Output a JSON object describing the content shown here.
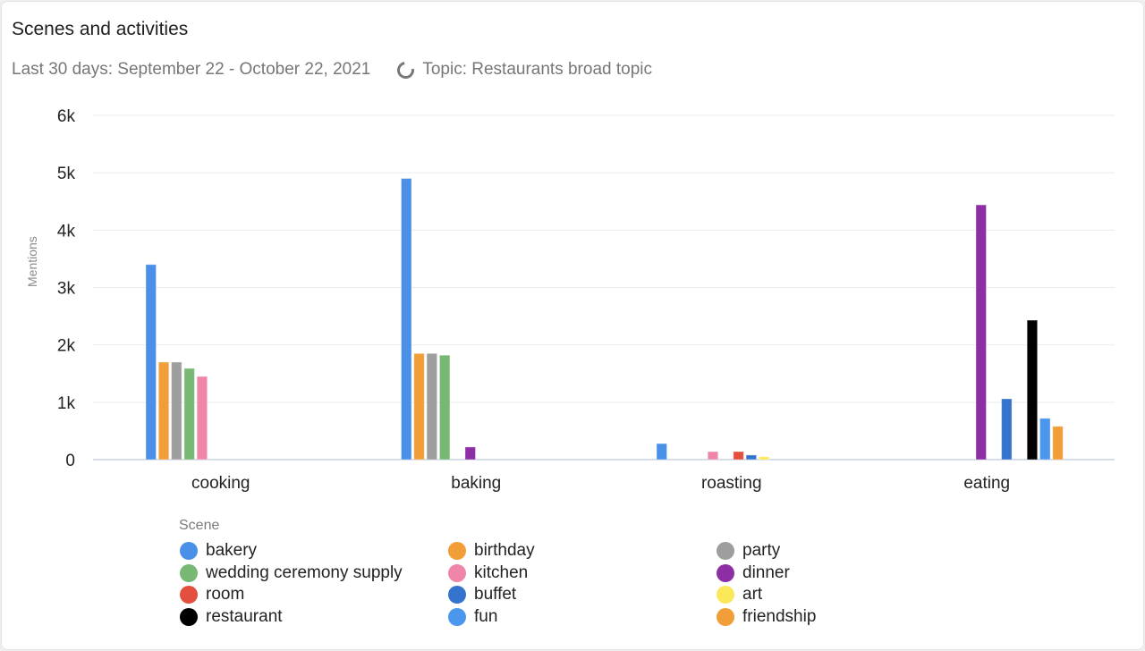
{
  "header": {
    "title": "Scenes and activities",
    "date_range": "Last 30 days: September 22 - October 22, 2021",
    "topic_icon": "loading-circle-icon",
    "topic": "Topic: Restaurants broad topic"
  },
  "legend": {
    "title": "Scene",
    "items": [
      {
        "label": "bakery",
        "color": "#4a90e8"
      },
      {
        "label": "birthday",
        "color": "#f19d38"
      },
      {
        "label": "party",
        "color": "#9e9e9e"
      },
      {
        "label": "wedding ceremony supply",
        "color": "#77b874"
      },
      {
        "label": "kitchen",
        "color": "#ef86aa"
      },
      {
        "label": "dinner",
        "color": "#8e2ea5"
      },
      {
        "label": "room",
        "color": "#e24f3e"
      },
      {
        "label": "buffet",
        "color": "#3574cc"
      },
      {
        "label": "art",
        "color": "#fbe85a"
      },
      {
        "label": "restaurant",
        "color": "#000000"
      },
      {
        "label": "fun",
        "color": "#4b97ee"
      },
      {
        "label": "friendship",
        "color": "#f19d38"
      }
    ]
  },
  "chart_data": {
    "type": "bar",
    "title": "Scenes and activities",
    "subtitle": "Last 30 days: September 22 - October 22, 2021",
    "xlabel": "",
    "ylabel": "Mentions",
    "ylim": [
      0,
      6000
    ],
    "yticks": [
      "0",
      "1k",
      "2k",
      "3k",
      "4k",
      "5k",
      "6k"
    ],
    "grid": true,
    "legend_position": "bottom",
    "legend_title": "Scene",
    "categories": [
      "cooking",
      "baking",
      "roasting",
      "eating"
    ],
    "series": [
      {
        "name": "bakery",
        "values": [
          3400,
          4900,
          280,
          0
        ]
      },
      {
        "name": "birthday",
        "values": [
          1700,
          1850,
          0,
          0
        ]
      },
      {
        "name": "party",
        "values": [
          1700,
          1850,
          0,
          0
        ]
      },
      {
        "name": "wedding ceremony supply",
        "values": [
          1590,
          1820,
          0,
          0
        ]
      },
      {
        "name": "kitchen",
        "values": [
          1450,
          0,
          140,
          0
        ]
      },
      {
        "name": "dinner",
        "values": [
          0,
          220,
          0,
          4440
        ]
      },
      {
        "name": "room",
        "values": [
          0,
          0,
          140,
          0
        ]
      },
      {
        "name": "buffet",
        "values": [
          0,
          0,
          80,
          1060
        ]
      },
      {
        "name": "art",
        "values": [
          0,
          0,
          50,
          0
        ]
      },
      {
        "name": "restaurant",
        "values": [
          0,
          0,
          0,
          2430
        ]
      },
      {
        "name": "fun",
        "values": [
          0,
          0,
          0,
          720
        ]
      },
      {
        "name": "friendship",
        "values": [
          0,
          0,
          0,
          580
        ]
      }
    ]
  }
}
